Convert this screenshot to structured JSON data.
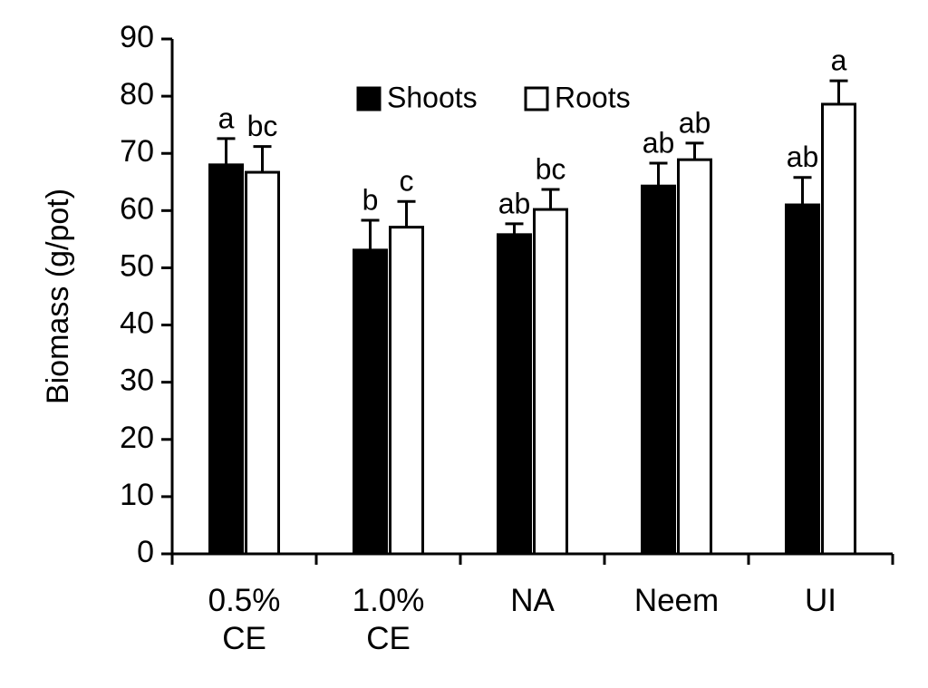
{
  "chart_data": {
    "type": "bar",
    "y_label": "Biomass (g/pot)",
    "categories": [
      "0.5% CE",
      "1.0% CE",
      "NA",
      "Neem",
      "UI"
    ],
    "series": [
      {
        "name": "Shoots",
        "color": "#000000",
        "values": [
          68,
          53.1,
          55.8,
          64.3,
          61
        ],
        "errors": [
          4.6,
          5.2,
          1.9,
          4,
          4.8
        ],
        "letters": [
          "a",
          "b",
          "ab",
          "ab",
          "ab"
        ]
      },
      {
        "name": "Roots",
        "color": "#ffffff",
        "values": [
          66.7,
          57.1,
          60.2,
          68.9,
          78.6
        ],
        "errors": [
          4.5,
          4.5,
          3.5,
          2.9,
          4.1
        ],
        "letters": [
          "bc",
          "c",
          "bc",
          "ab",
          "a"
        ]
      }
    ],
    "ylim": [
      0,
      90
    ],
    "yticks": [
      0,
      10,
      20,
      30,
      40,
      50,
      60,
      70,
      80,
      90
    ],
    "grid": false,
    "legend": "top"
  }
}
